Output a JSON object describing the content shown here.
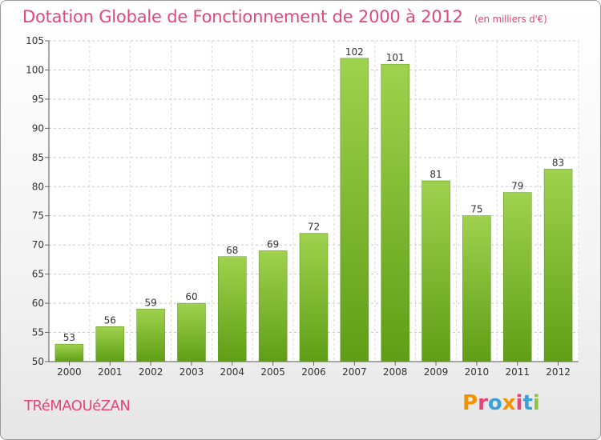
{
  "header": {
    "title": "Dotation Globale de Fonctionnement de 2000 à 2012",
    "unit": "(en milliers d'€)"
  },
  "footer": {
    "commune": "TRéMAOUéZAN",
    "logo_text": "Proxiti",
    "logo_colors": [
      "#f39200",
      "#e2477a",
      "#3aa1d8",
      "#f39200",
      "#e2477a",
      "#3aa1d8",
      "#8cc63f"
    ]
  },
  "chart_data": {
    "type": "bar",
    "title": "Dotation Globale de Fonctionnement de 2000 à 2012",
    "categories": [
      "2000",
      "2001",
      "2002",
      "2003",
      "2004",
      "2005",
      "2006",
      "2007",
      "2008",
      "2009",
      "2010",
      "2011",
      "2012"
    ],
    "values": [
      53,
      56,
      59,
      60,
      68,
      69,
      72,
      102,
      101,
      81,
      75,
      79,
      83
    ],
    "ylim": [
      50,
      105
    ],
    "yticks": [
      50,
      55,
      60,
      65,
      70,
      75,
      80,
      85,
      90,
      95,
      100,
      105
    ],
    "grid": true,
    "bar_color": "#7dbb2c"
  }
}
